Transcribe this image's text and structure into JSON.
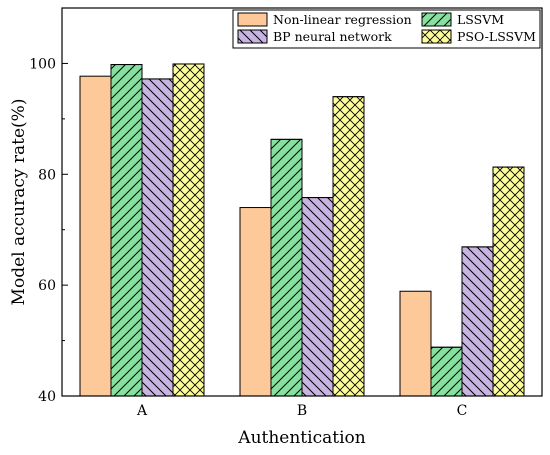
{
  "chart_data": {
    "type": "bar",
    "categories": [
      "A",
      "B",
      "C"
    ],
    "series": [
      {
        "name": "Non-linear regression",
        "values": [
          97.7,
          74.0,
          58.9
        ],
        "color": "#fdc999",
        "pattern": "none"
      },
      {
        "name": "LSSVM",
        "values": [
          99.8,
          86.3,
          48.8
        ],
        "color": "#86e0a0",
        "pattern": "diagonal"
      },
      {
        "name": "BP neural network",
        "values": [
          97.2,
          75.8,
          66.9
        ],
        "color": "#c8b4e3",
        "pattern": "backdiagonal"
      },
      {
        "name": "PSO-LSSVM",
        "values": [
          99.9,
          94.0,
          81.3
        ],
        "color": "#ffff99",
        "pattern": "crosshatch"
      }
    ],
    "xlabel": "Authentication",
    "ylabel": "Model accuracy rate(%)",
    "ylim": [
      40,
      110
    ],
    "yticks": [
      40,
      60,
      80,
      100
    ],
    "grid": false,
    "legend": "top-right"
  }
}
